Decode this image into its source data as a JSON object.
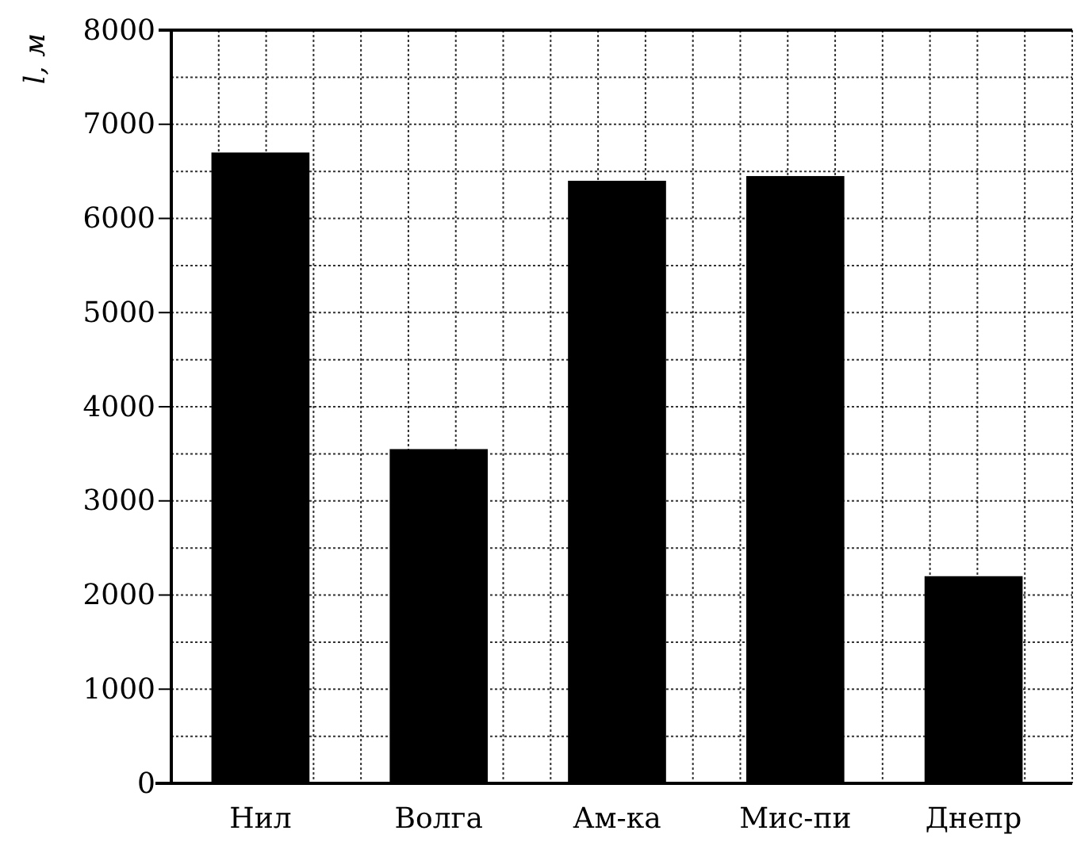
{
  "chart_data": {
    "type": "bar",
    "ylabel": "l, м",
    "categories": [
      "Нил",
      "Волга",
      "Ам-ка",
      "Мис-пи",
      "Днепр"
    ],
    "values": [
      6700,
      3550,
      6400,
      6450,
      2200
    ],
    "color": "#000000",
    "ylim": [
      0,
      8000
    ],
    "yticks": [
      0,
      1000,
      2000,
      3000,
      4000,
      5000,
      6000,
      7000,
      8000
    ],
    "grid": true
  }
}
